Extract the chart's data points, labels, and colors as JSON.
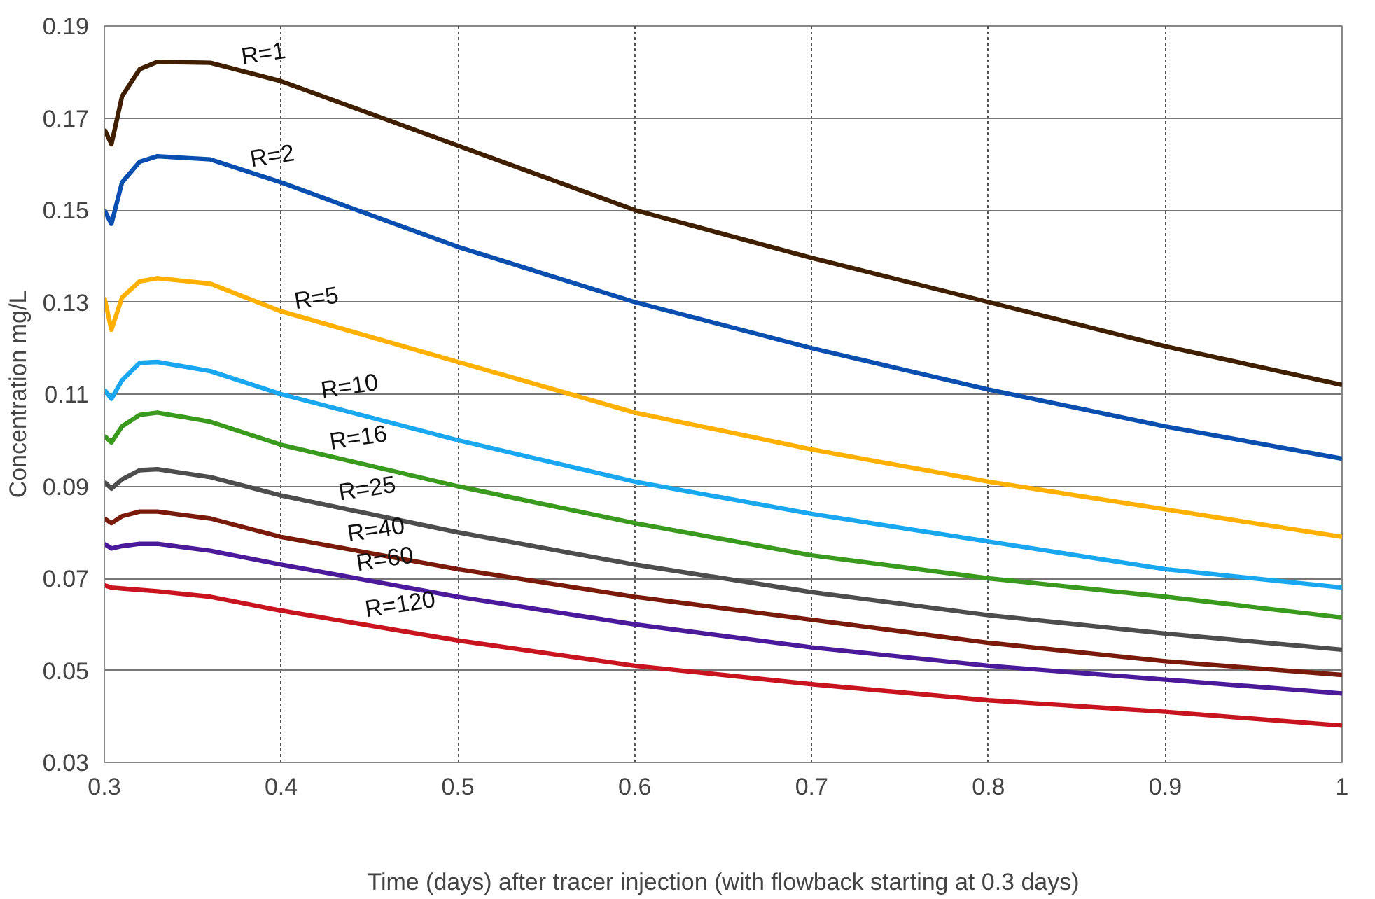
{
  "chart_data": {
    "type": "line",
    "xlabel": "Time (days) after tracer injection (with flowback starting at 0.3 days)",
    "ylabel": "Concentration mg/L",
    "x": [
      0.3,
      0.304,
      0.31,
      0.32,
      0.33,
      0.36,
      0.4,
      0.5,
      0.6,
      0.7,
      0.8,
      0.9,
      1.0
    ],
    "series": [
      {
        "name": "R=1",
        "color": "#3f1f00",
        "values": [
          0.1676,
          0.1643,
          0.1747,
          0.1806,
          0.1822,
          0.182,
          0.178,
          0.164,
          0.15,
          0.1396,
          0.13,
          0.1204,
          0.112
        ]
      },
      {
        "name": "R=2",
        "color": "#0a4fb0",
        "values": [
          0.15,
          0.147,
          0.156,
          0.1605,
          0.1617,
          0.161,
          0.156,
          0.142,
          0.13,
          0.12,
          0.111,
          0.103,
          0.096
        ]
      },
      {
        "name": "R=5",
        "color": "#ffb000",
        "values": [
          0.131,
          0.124,
          0.131,
          0.1345,
          0.1352,
          0.134,
          0.128,
          0.117,
          0.106,
          0.098,
          0.091,
          0.085,
          0.079
        ]
      },
      {
        "name": "R=10",
        "color": "#19a8f0",
        "values": [
          0.111,
          0.109,
          0.113,
          0.1168,
          0.117,
          0.115,
          0.11,
          0.1,
          0.091,
          0.084,
          0.078,
          0.072,
          0.068
        ]
      },
      {
        "name": "R=16",
        "color": "#3a9a1e",
        "values": [
          0.101,
          0.0995,
          0.103,
          0.1055,
          0.106,
          0.104,
          0.099,
          0.09,
          0.082,
          0.075,
          0.07,
          0.066,
          0.0615
        ]
      },
      {
        "name": "R=25",
        "color": "#4d4d4d",
        "values": [
          0.091,
          0.0895,
          0.0915,
          0.0935,
          0.0937,
          0.092,
          0.088,
          0.08,
          0.073,
          0.067,
          0.062,
          0.058,
          0.0545
        ]
      },
      {
        "name": "R=40",
        "color": "#7a1a0a",
        "values": [
          0.083,
          0.082,
          0.0835,
          0.0845,
          0.0845,
          0.083,
          0.079,
          0.072,
          0.066,
          0.061,
          0.056,
          0.052,
          0.049
        ]
      },
      {
        "name": "R=60",
        "color": "#4b1a9a",
        "values": [
          0.0775,
          0.0765,
          0.077,
          0.0775,
          0.0775,
          0.076,
          0.073,
          0.066,
          0.06,
          0.055,
          0.051,
          0.048,
          0.045
        ]
      },
      {
        "name": "R=120",
        "color": "#c8141e",
        "values": [
          0.0685,
          0.068,
          0.0678,
          0.0675,
          0.0672,
          0.066,
          0.063,
          0.0565,
          0.051,
          0.047,
          0.0435,
          0.041,
          0.038
        ]
      }
    ],
    "xlim": [
      0.3,
      1.0
    ],
    "ylim": [
      0.03,
      0.19
    ],
    "xticks": [
      0.3,
      0.4,
      0.5,
      0.6,
      0.7,
      0.8,
      0.9,
      1
    ],
    "yticks": [
      0.03,
      0.05,
      0.07,
      0.09,
      0.11,
      0.13,
      0.15,
      0.17,
      0.19
    ],
    "grid": true,
    "legend": false,
    "marker": "none",
    "line_style": "solid"
  }
}
